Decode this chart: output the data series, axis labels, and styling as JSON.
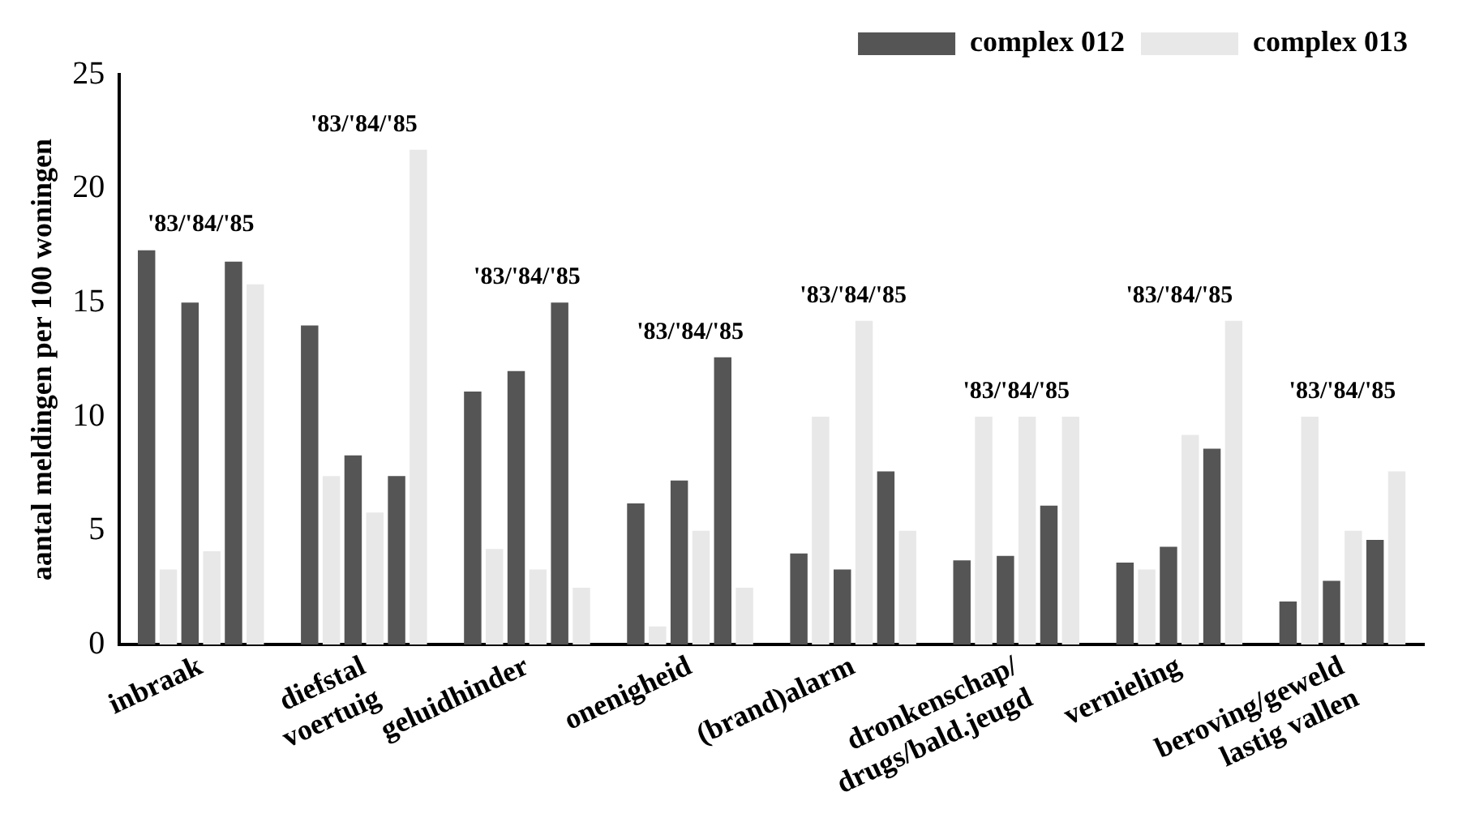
{
  "chart_data": {
    "type": "bar",
    "ylabel": "aantal meldingen per 100 woningen",
    "categories": [
      "inbraak",
      "diefstal\nvoertuig",
      "geluidhinder",
      "onenigheid",
      "(brand)alarm",
      "dronkenschap/\ndrugs/bald.jeugd",
      "vernieling",
      "beroving/geweld\nlastig vallen"
    ],
    "series": [
      {
        "name": "complex 012",
        "color": "#555555",
        "values": [
          17.3,
          14.0,
          11.1,
          6.2,
          4.0,
          3.7,
          3.6,
          1.9
        ]
      },
      {
        "name": "complex 013",
        "color": "#e8e8e8",
        "values": [
          3.3,
          7.4,
          4.2,
          0.8,
          10.0,
          10.0,
          3.3,
          10.0
        ]
      },
      {
        "color": "#555555",
        "values": [
          15.0,
          8.3,
          12.0,
          7.2,
          3.3,
          3.9,
          4.3,
          2.8
        ]
      },
      {
        "color": "#e8e8e8",
        "values": [
          4.1,
          5.8,
          3.3,
          5.0,
          14.2,
          10.0,
          9.2,
          5.0
        ]
      },
      {
        "color": "#555555",
        "values": [
          16.8,
          7.4,
          15.0,
          12.6,
          7.6,
          6.1,
          8.6,
          4.6
        ]
      },
      {
        "color": "#e8e8e8",
        "values": [
          15.8,
          21.7,
          2.5,
          2.5,
          5.0,
          10.0,
          14.2,
          7.6
        ]
      }
    ],
    "ylim": [
      0,
      25
    ],
    "yticks": [
      0,
      5,
      10,
      15,
      20,
      25
    ],
    "grid": false,
    "legend": "top right",
    "annotations": [
      "'83/'84/'85",
      "'83/'84/'85",
      "'83/'84/'85",
      "'83/'84/'85",
      "'83/'84/'85",
      "'83/'84/'85",
      "'83/'84/'85",
      "'83/'84/'85"
    ]
  }
}
